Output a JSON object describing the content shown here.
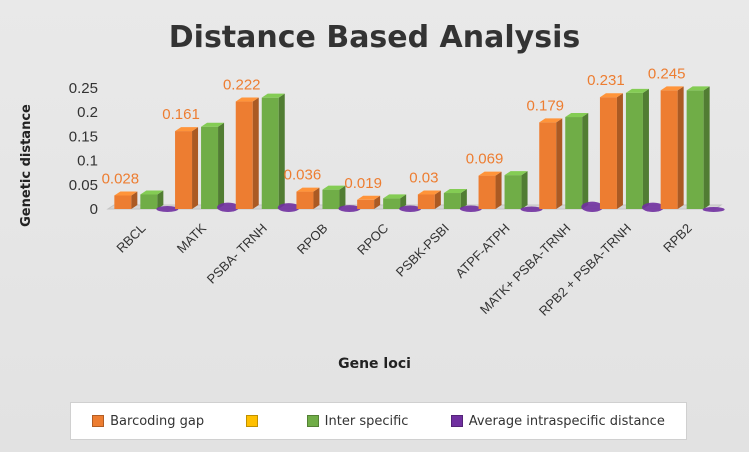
{
  "chart_data": {
    "type": "bar",
    "title": "Distance Based Analysis",
    "xlabel": "Gene loci",
    "ylabel": "Genetic distance",
    "ylim": [
      0,
      0.25
    ],
    "yticks": [
      "0",
      "0.05",
      "0.1",
      "0.15",
      "0.2",
      "0.25"
    ],
    "categories": [
      "RBCL",
      "MATK",
      "PSBA- TRNH",
      "RPOB",
      "RPOC",
      "PSBK-PSBI",
      "ATPF-ATPH",
      "MATK+ PSBA-TRNH",
      "RPB2 + PSBA-TRNH",
      "RPB2"
    ],
    "series": [
      {
        "name": "Barcoding gap",
        "color": "#ED7D31",
        "values": [
          0.028,
          0.161,
          0.222,
          0.036,
          0.019,
          0.03,
          0.069,
          0.179,
          0.231,
          0.245
        ]
      },
      {
        "name": "",
        "color": "#FFC000",
        "values": [
          0,
          0,
          0,
          0,
          0,
          0,
          0,
          0,
          0,
          0
        ]
      },
      {
        "name": "Inter specific",
        "color": "#70AD47",
        "values": [
          0.03,
          0.17,
          0.23,
          0.04,
          0.022,
          0.033,
          0.07,
          0.19,
          0.24,
          0.245
        ]
      },
      {
        "name": "Average intraspecific distance",
        "color": "#7030A0",
        "values": [
          0.002,
          0.009,
          0.008,
          0.004,
          0.003,
          0.003,
          0.001,
          0.011,
          0.009,
          0.0
        ]
      }
    ],
    "data_labels": [
      "0.028",
      "0.161",
      "0.222",
      "0.036",
      "0.019",
      "0.03",
      "0.069",
      "0.179",
      "0.231",
      "0.245"
    ],
    "data_label_color": "#ED7D31",
    "grid": false,
    "legend_position": "bottom"
  }
}
